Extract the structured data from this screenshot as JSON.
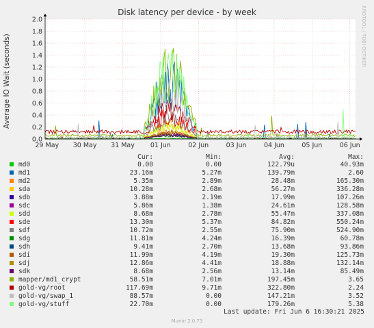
{
  "chart_data": {
    "type": "line",
    "title": "Disk latency per device - by week",
    "ylabel": "Average IO Wait (seconds)",
    "watermark": "RRDTOOL / TOBI OETIKER",
    "ylim": [
      0,
      2.0
    ],
    "yticks": [
      "0.0",
      "0.2",
      "0.4",
      "0.6",
      "0.8",
      "1.0",
      "1.2",
      "1.4",
      "1.6",
      "1.8",
      "2.0"
    ],
    "xticks": [
      "29 May",
      "30 May",
      "31 May",
      "01 Jun",
      "02 Jun",
      "03 Jun",
      "04 Jun",
      "05 Jun",
      "06 Jun"
    ],
    "x_range_days": [
      0,
      8.2
    ],
    "grid": true,
    "legend_headers": {
      "cur": "Cur:",
      "min": "Min:",
      "avg": "Avg:",
      "max": "Max:"
    },
    "series": [
      {
        "name": "md0",
        "color": "#00cc00",
        "cur": "0.00",
        "min": "0.00",
        "avg": "122.79u",
        "max": "40.93m",
        "base": 0.0,
        "noise": 0.003,
        "spike": 0.02
      },
      {
        "name": "md1",
        "color": "#0066b3",
        "cur": "23.16m",
        "min": "5.27m",
        "avg": "139.79m",
        "max": "2.60",
        "base": 0.015,
        "noise": 0.01,
        "spike": 1.35
      },
      {
        "name": "md2",
        "color": "#ff8000",
        "cur": "5.35m",
        "min": "2.89m",
        "avg": "28.48m",
        "max": "165.30m",
        "base": 0.006,
        "noise": 0.005,
        "spike": 0.16
      },
      {
        "name": "sda",
        "color": "#ffcc00",
        "cur": "10.28m",
        "min": "2.68m",
        "avg": "56.27m",
        "max": "336.28m",
        "base": 0.01,
        "noise": 0.008,
        "spike": 0.33
      },
      {
        "name": "sdb",
        "color": "#330099",
        "cur": "3.88m",
        "min": "2.19m",
        "avg": "17.99m",
        "max": "107.26m",
        "base": 0.004,
        "noise": 0.003,
        "spike": 0.1
      },
      {
        "name": "sdc",
        "color": "#990099",
        "cur": "5.86m",
        "min": "1.38m",
        "avg": "24.61m",
        "max": "128.58m",
        "base": 0.006,
        "noise": 0.004,
        "spike": 0.12
      },
      {
        "name": "sdd",
        "color": "#ccff00",
        "cur": "8.68m",
        "min": "2.78m",
        "avg": "55.47m",
        "max": "337.08m",
        "base": 0.009,
        "noise": 0.006,
        "spike": 0.3
      },
      {
        "name": "sde",
        "color": "#ff0000",
        "cur": "13.30m",
        "min": "5.37m",
        "avg": "84.82m",
        "max": "550.24m",
        "base": 0.014,
        "noise": 0.008,
        "spike": 0.55
      },
      {
        "name": "sdf",
        "color": "#808080",
        "cur": "10.72m",
        "min": "2.55m",
        "avg": "75.90m",
        "max": "524.90m",
        "base": 0.011,
        "noise": 0.007,
        "spike": 0.5
      },
      {
        "name": "sdg",
        "color": "#008f00",
        "cur": "11.81m",
        "min": "4.24m",
        "avg": "16.39m",
        "max": "60.78m",
        "base": 0.012,
        "noise": 0.005,
        "spike": 0.06
      },
      {
        "name": "sdh",
        "color": "#00487d",
        "cur": "9.41m",
        "min": "2.70m",
        "avg": "13.68m",
        "max": "93.86m",
        "base": 0.009,
        "noise": 0.004,
        "spike": 0.09
      },
      {
        "name": "sdi",
        "color": "#b35a00",
        "cur": "11.99m",
        "min": "4.19m",
        "avg": "19.30m",
        "max": "125.73m",
        "base": 0.012,
        "noise": 0.005,
        "spike": 0.12
      },
      {
        "name": "sdj",
        "color": "#b38f00",
        "cur": "12.86m",
        "min": "4.41m",
        "avg": "18.88m",
        "max": "132.14m",
        "base": 0.013,
        "noise": 0.005,
        "spike": 0.13
      },
      {
        "name": "sdk",
        "color": "#6b006b",
        "cur": "8.68m",
        "min": "2.56m",
        "avg": "13.14m",
        "max": "85.49m",
        "base": 0.009,
        "noise": 0.004,
        "spike": 0.08
      },
      {
        "name": "mapper/md1_crypt",
        "color": "#8fb300",
        "cur": "58.51m",
        "min": "7.01m",
        "avg": "197.45m",
        "max": "3.65",
        "base": 0.06,
        "noise": 0.02,
        "spike": 1.55
      },
      {
        "name": "gold-vg/root",
        "color": "#b30000",
        "cur": "117.69m",
        "min": "9.71m",
        "avg": "322.80m",
        "max": "2.24",
        "base": 0.12,
        "noise": 0.03,
        "spike": 0.55
      },
      {
        "name": "gold-vg/swap_1",
        "color": "#bebebe",
        "cur": "88.57m",
        "min": "0.00",
        "avg": "147.21m",
        "max": "3.52",
        "base": 0.02,
        "noise": 0.03,
        "spike": 1.0
      },
      {
        "name": "gold-vg/stuff",
        "color": "#80ff80",
        "cur": "22.70m",
        "min": "0.00",
        "avg": "179.26m",
        "max": "5.38",
        "base": 0.01,
        "noise": 0.02,
        "spike": 1.6
      }
    ]
  },
  "footer": {
    "last_update": "Last update:  Fri Jun  6 16:30:21 2025",
    "munin_version": "Munin 2.0.73"
  }
}
